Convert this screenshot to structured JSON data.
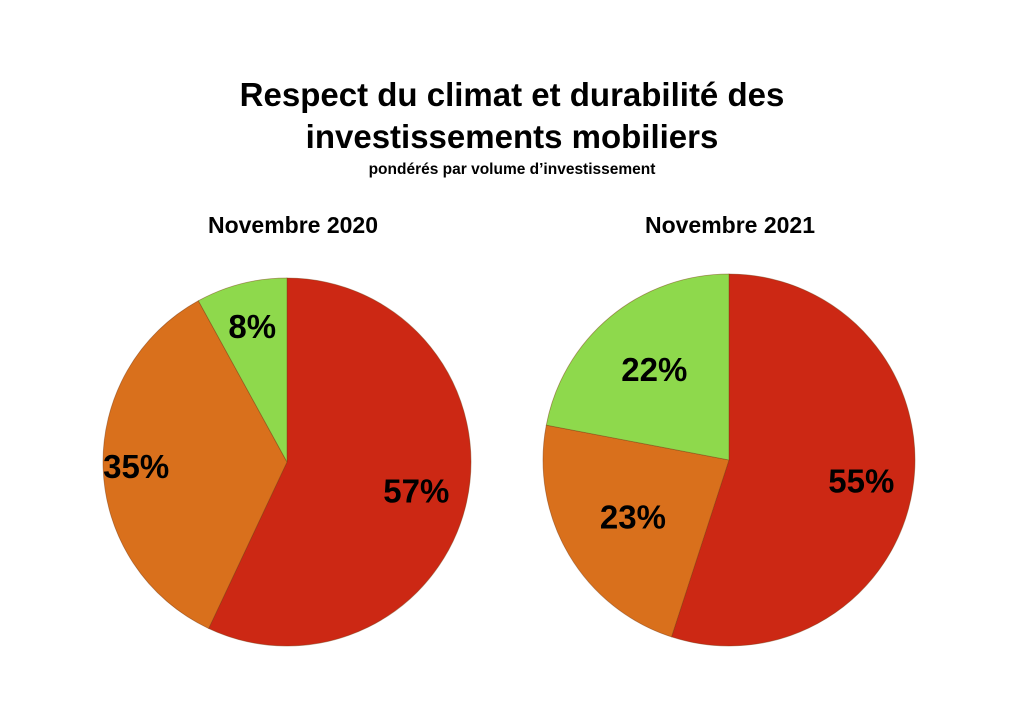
{
  "title_line1": "Respect du climat et durabilité des",
  "title_line2": "investissements mobiliers",
  "subtitle": "pondérés par volume d’investissement",
  "chart_data": [
    {
      "type": "pie",
      "title": "Novembre 2020",
      "slices": [
        {
          "label": "57%",
          "value": 57,
          "color": "#cc2814"
        },
        {
          "label": "35%",
          "value": 35,
          "color": "#d9701c"
        },
        {
          "label": "8%",
          "value": 8,
          "color": "#8ed94c"
        }
      ]
    },
    {
      "type": "pie",
      "title": "Novembre 2021",
      "slices": [
        {
          "label": "55%",
          "value": 55,
          "color": "#cc2814"
        },
        {
          "label": "23%",
          "value": 23,
          "color": "#d9701c"
        },
        {
          "label": "22%",
          "value": 22,
          "color": "#8ed94c"
        }
      ]
    }
  ]
}
